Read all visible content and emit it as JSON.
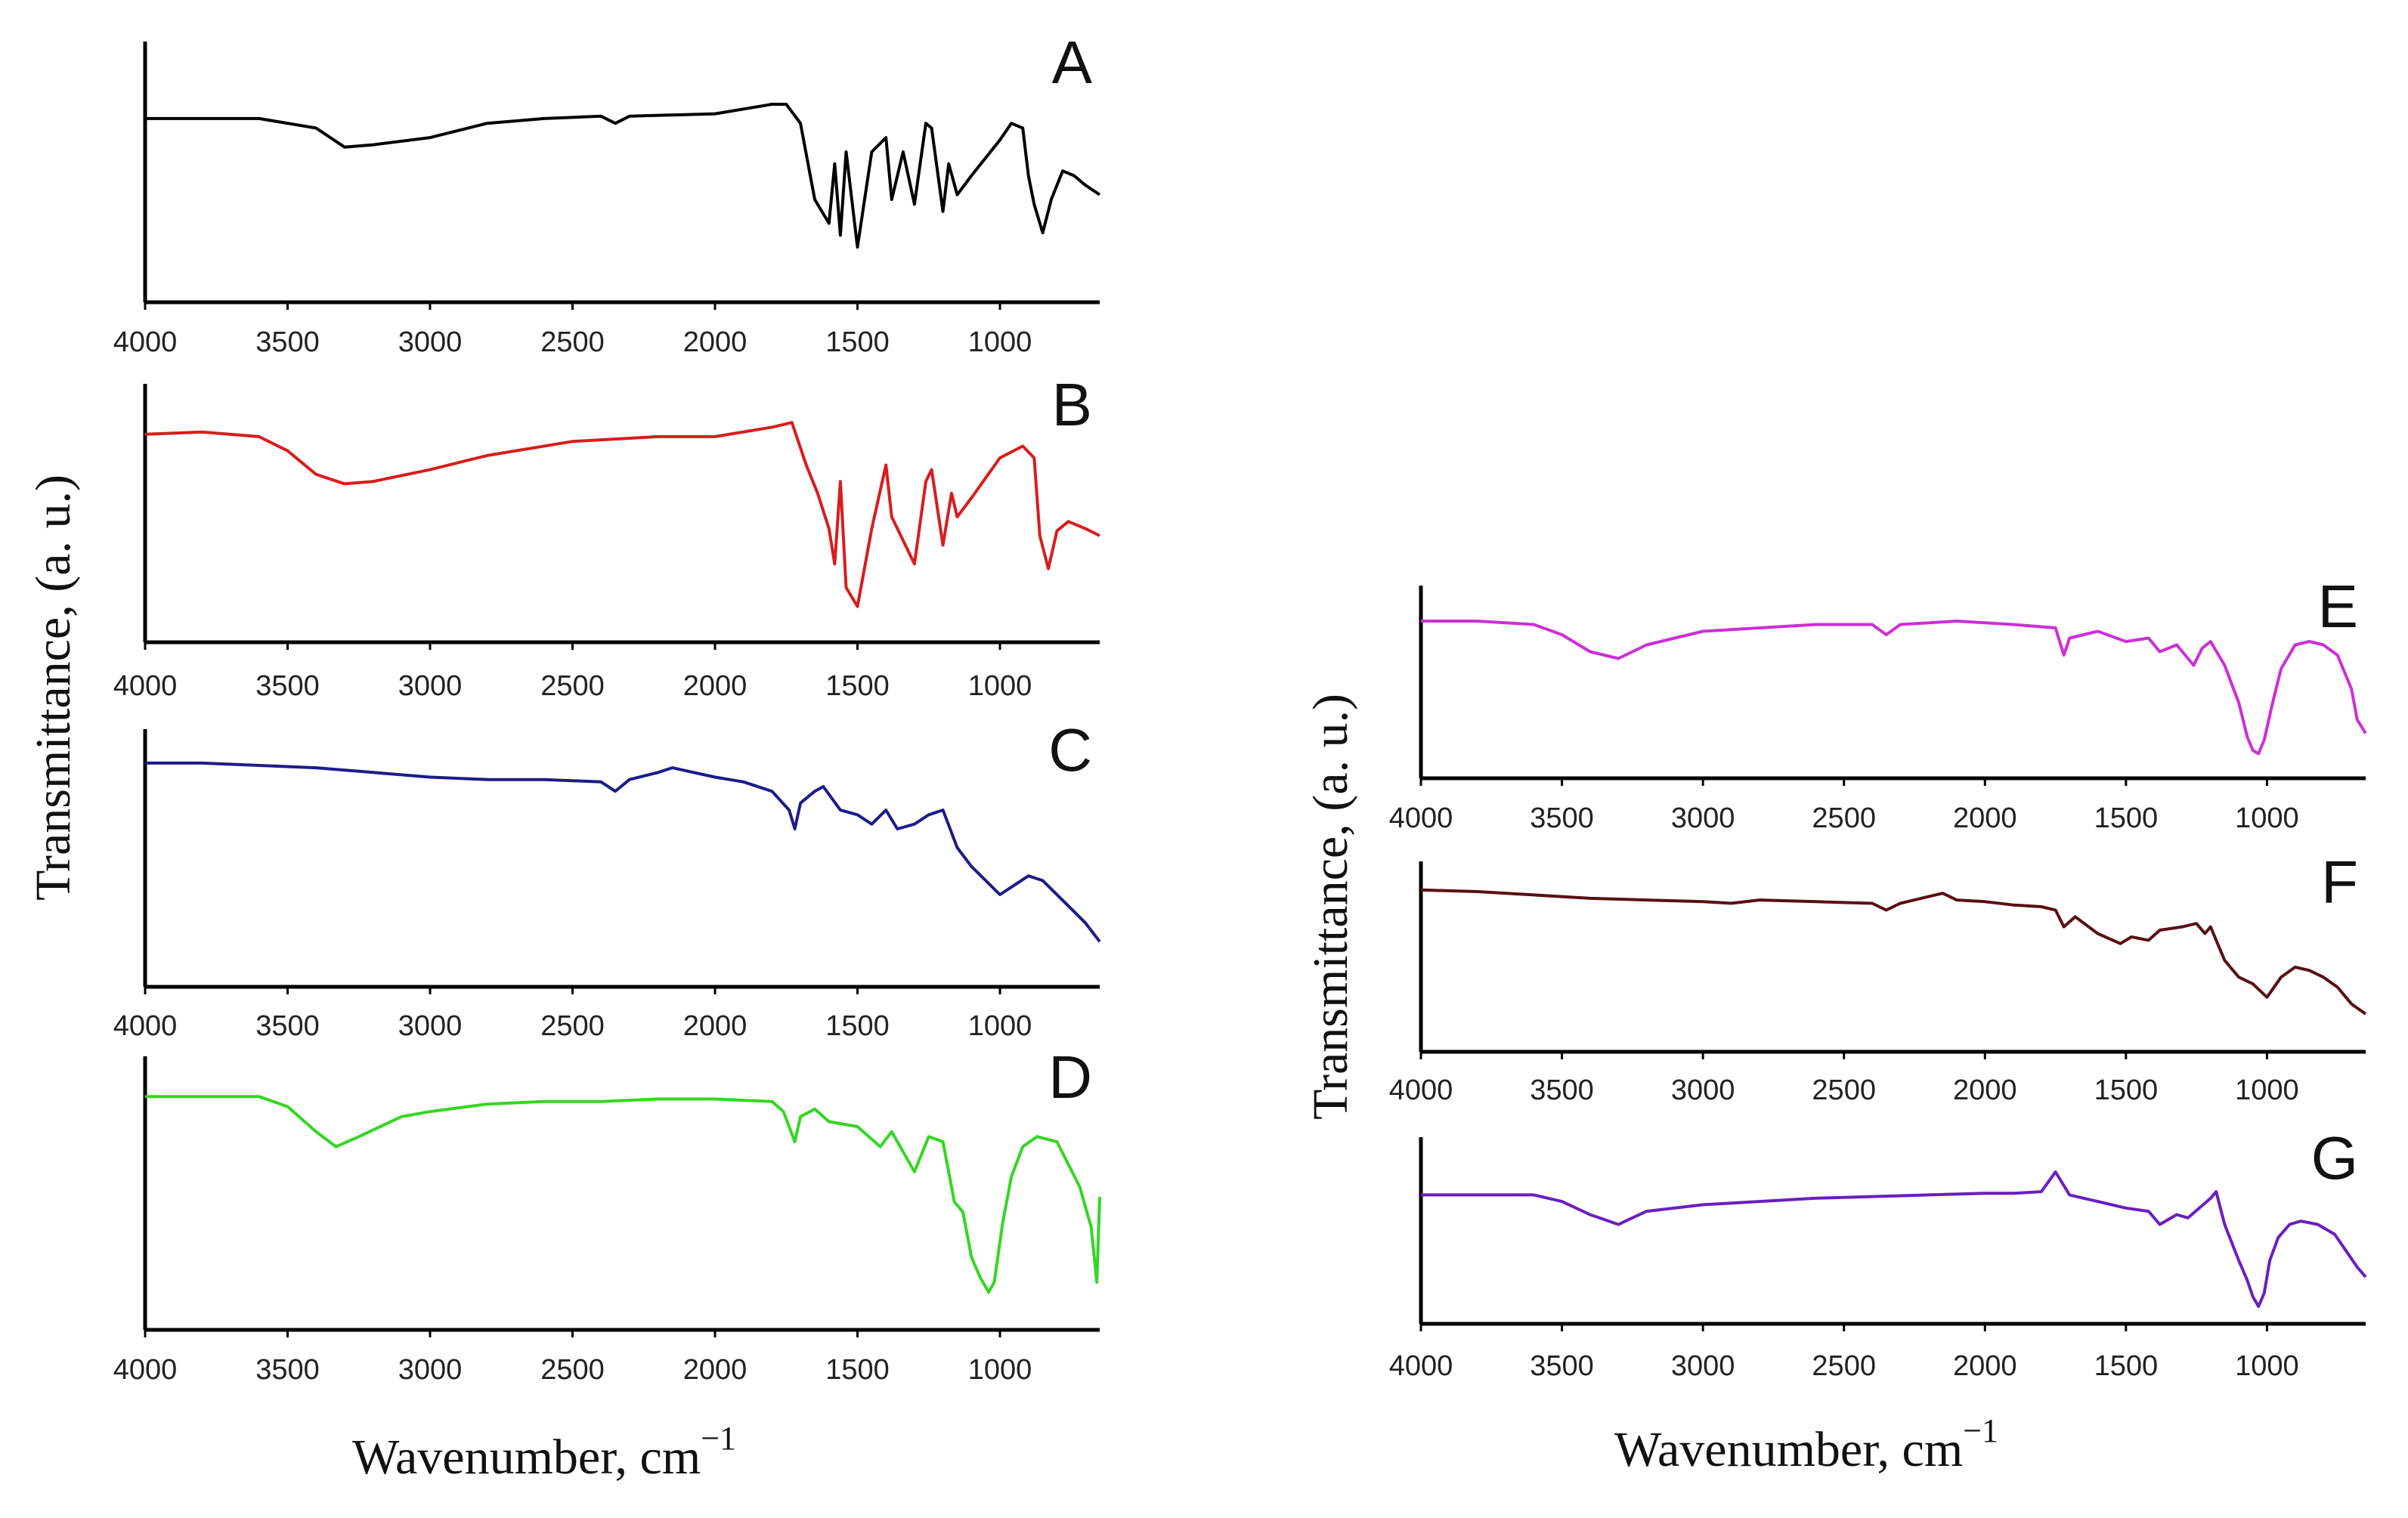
{
  "chart_data": {
    "type": "line",
    "xlabel": "Wavenumber, cm",
    "xlabel_superscript": "−1",
    "ylabel": "Transmittance, (a. u.)",
    "xlim": [
      4000,
      650
    ],
    "x_reversed": true,
    "x_ticks": [
      "4000",
      "3500",
      "3000",
      "2500",
      "2000",
      "1500",
      "1000"
    ],
    "x_tick_values": [
      4000,
      3500,
      3000,
      2500,
      2000,
      1500,
      1000
    ],
    "ylim": [
      0,
      1
    ],
    "grid": false,
    "groups": [
      {
        "name": "left",
        "panels": [
          {
            "label": "A",
            "color": "#000000",
            "x": [
              4000,
              3800,
              3600,
              3400,
              3300,
              3200,
              3000,
              2800,
              2600,
              2400,
              2350,
              2300,
              2000,
              1800,
              1750,
              1700,
              1650,
              1600,
              1580,
              1560,
              1540,
              1500,
              1450,
              1400,
              1380,
              1340,
              1300,
              1260,
              1240,
              1200,
              1180,
              1150,
              1100,
              1000,
              960,
              920,
              900,
              880,
              850,
              820,
              780,
              740,
              700,
              650
            ],
            "y": [
              0.74,
              0.74,
              0.74,
              0.7,
              0.62,
              0.63,
              0.66,
              0.72,
              0.74,
              0.75,
              0.72,
              0.75,
              0.76,
              0.8,
              0.8,
              0.72,
              0.4,
              0.3,
              0.55,
              0.25,
              0.6,
              0.2,
              0.6,
              0.66,
              0.4,
              0.6,
              0.38,
              0.72,
              0.7,
              0.35,
              0.55,
              0.42,
              0.5,
              0.65,
              0.72,
              0.7,
              0.5,
              0.38,
              0.26,
              0.4,
              0.52,
              0.5,
              0.46,
              0.42
            ]
          },
          {
            "label": "B",
            "color": "#d81d1d",
            "x": [
              4000,
              3800,
              3600,
              3500,
              3400,
              3300,
              3200,
              3000,
              2800,
              2500,
              2200,
              2000,
              1800,
              1730,
              1680,
              1640,
              1600,
              1580,
              1560,
              1540,
              1500,
              1450,
              1400,
              1380,
              1340,
              1300,
              1260,
              1240,
              1200,
              1170,
              1150,
              1100,
              1000,
              920,
              880,
              860,
              830,
              800,
              760,
              700,
              650
            ],
            "y": [
              0.85,
              0.86,
              0.84,
              0.78,
              0.68,
              0.64,
              0.65,
              0.7,
              0.76,
              0.82,
              0.84,
              0.84,
              0.88,
              0.9,
              0.72,
              0.6,
              0.45,
              0.3,
              0.65,
              0.2,
              0.12,
              0.45,
              0.72,
              0.5,
              0.4,
              0.3,
              0.65,
              0.7,
              0.38,
              0.6,
              0.5,
              0.58,
              0.75,
              0.8,
              0.75,
              0.42,
              0.28,
              0.44,
              0.48,
              0.45,
              0.42
            ]
          },
          {
            "label": "C",
            "color": "#1c1c8a",
            "x": [
              4000,
              3800,
              3600,
              3400,
              3200,
              3000,
              2800,
              2600,
              2400,
              2350,
              2300,
              2200,
              2150,
              2000,
              1900,
              1800,
              1740,
              1720,
              1700,
              1650,
              1620,
              1560,
              1500,
              1450,
              1400,
              1360,
              1300,
              1250,
              1200,
              1150,
              1100,
              1000,
              950,
              900,
              850,
              800,
              750,
              700,
              650
            ],
            "y": [
              0.92,
              0.92,
              0.91,
              0.9,
              0.88,
              0.86,
              0.85,
              0.85,
              0.84,
              0.8,
              0.85,
              0.88,
              0.9,
              0.86,
              0.84,
              0.8,
              0.72,
              0.64,
              0.75,
              0.8,
              0.82,
              0.72,
              0.7,
              0.66,
              0.72,
              0.64,
              0.66,
              0.7,
              0.72,
              0.56,
              0.48,
              0.36,
              0.4,
              0.44,
              0.42,
              0.36,
              0.3,
              0.24,
              0.16
            ]
          },
          {
            "label": "D",
            "color": "#35d624",
            "x": [
              4000,
              3800,
              3600,
              3500,
              3400,
              3330,
              3250,
              3100,
              3000,
              2800,
              2600,
              2400,
              2200,
              2000,
              1800,
              1760,
              1720,
              1700,
              1650,
              1600,
              1500,
              1420,
              1380,
              1300,
              1250,
              1200,
              1160,
              1130,
              1100,
              1070,
              1040,
              1020,
              990,
              960,
              920,
              870,
              800,
              720,
              680,
              660,
              650
            ],
            "y": [
              0.9,
              0.9,
              0.9,
              0.86,
              0.76,
              0.7,
              0.74,
              0.82,
              0.84,
              0.87,
              0.88,
              0.88,
              0.89,
              0.89,
              0.88,
              0.84,
              0.72,
              0.82,
              0.85,
              0.8,
              0.78,
              0.7,
              0.76,
              0.6,
              0.74,
              0.72,
              0.48,
              0.44,
              0.26,
              0.18,
              0.12,
              0.16,
              0.4,
              0.58,
              0.7,
              0.74,
              0.72,
              0.54,
              0.38,
              0.16,
              0.5
            ]
          }
        ]
      },
      {
        "name": "right",
        "panels": [
          {
            "label": "E",
            "color": "#cc2fd6",
            "x": [
              4000,
              3800,
              3600,
              3500,
              3400,
              3300,
              3200,
              3000,
              2800,
              2600,
              2400,
              2350,
              2300,
              2100,
              1900,
              1750,
              1720,
              1700,
              1600,
              1500,
              1420,
              1380,
              1320,
              1260,
              1230,
              1200,
              1150,
              1100,
              1070,
              1050,
              1030,
              1010,
              980,
              950,
              900,
              850,
              800,
              750,
              700,
              680,
              650
            ],
            "y": [
              0.88,
              0.88,
              0.86,
              0.8,
              0.7,
              0.66,
              0.74,
              0.82,
              0.84,
              0.86,
              0.86,
              0.8,
              0.86,
              0.88,
              0.86,
              0.84,
              0.68,
              0.78,
              0.82,
              0.76,
              0.78,
              0.7,
              0.74,
              0.62,
              0.72,
              0.76,
              0.62,
              0.4,
              0.2,
              0.12,
              0.1,
              0.18,
              0.4,
              0.6,
              0.74,
              0.76,
              0.74,
              0.68,
              0.48,
              0.3,
              0.22
            ]
          },
          {
            "label": "F",
            "color": "#5a0f14",
            "x": [
              4000,
              3800,
              3600,
              3400,
              3200,
              3000,
              2900,
              2800,
              2600,
              2400,
              2350,
              2300,
              2200,
              2150,
              2100,
              2000,
              1900,
              1800,
              1750,
              1720,
              1680,
              1600,
              1520,
              1480,
              1420,
              1380,
              1300,
              1250,
              1220,
              1200,
              1150,
              1100,
              1050,
              1000,
              950,
              900,
              850,
              800,
              750,
              700,
              650
            ],
            "y": [
              0.92,
              0.91,
              0.89,
              0.87,
              0.86,
              0.85,
              0.84,
              0.86,
              0.85,
              0.84,
              0.8,
              0.84,
              0.88,
              0.9,
              0.86,
              0.85,
              0.83,
              0.82,
              0.8,
              0.7,
              0.76,
              0.66,
              0.6,
              0.64,
              0.62,
              0.68,
              0.7,
              0.72,
              0.66,
              0.7,
              0.5,
              0.4,
              0.36,
              0.28,
              0.4,
              0.46,
              0.44,
              0.4,
              0.34,
              0.24,
              0.18
            ]
          },
          {
            "label": "G",
            "color": "#6a1fc0",
            "x": [
              4000,
              3800,
              3600,
              3500,
              3400,
              3300,
              3200,
              3000,
              2800,
              2600,
              2400,
              2200,
              2000,
              1900,
              1800,
              1750,
              1700,
              1650,
              1600,
              1500,
              1420,
              1380,
              1320,
              1280,
              1200,
              1180,
              1150,
              1100,
              1070,
              1050,
              1030,
              1010,
              990,
              960,
              920,
              880,
              820,
              760,
              720,
              680,
              650
            ],
            "y": [
              0.74,
              0.74,
              0.74,
              0.7,
              0.62,
              0.56,
              0.64,
              0.68,
              0.7,
              0.72,
              0.73,
              0.74,
              0.75,
              0.75,
              0.76,
              0.88,
              0.74,
              0.72,
              0.7,
              0.66,
              0.64,
              0.56,
              0.62,
              0.6,
              0.72,
              0.76,
              0.56,
              0.34,
              0.22,
              0.12,
              0.06,
              0.14,
              0.34,
              0.48,
              0.56,
              0.58,
              0.56,
              0.5,
              0.4,
              0.3,
              0.24
            ]
          }
        ]
      }
    ]
  }
}
